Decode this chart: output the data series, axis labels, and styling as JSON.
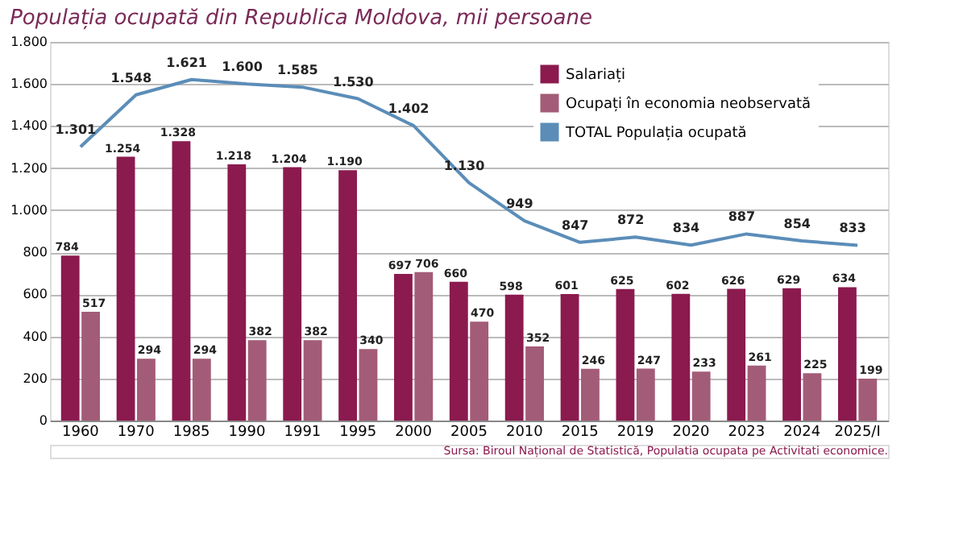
{
  "chart_data": {
    "type": "bar",
    "title": "Populația ocupată din Republica Moldova, mii persoane",
    "categories": [
      "1960",
      "1970",
      "1985",
      "1990",
      "1991",
      "1995",
      "2000",
      "2005",
      "2010",
      "2015",
      "2019",
      "2020",
      "2023",
      "2024",
      "2025/I"
    ],
    "series": [
      {
        "name": "Salariați",
        "color": "#8b1a4f",
        "values": [
          784,
          1254,
          1328,
          1218,
          1204,
          1190,
          697,
          660,
          598,
          601,
          625,
          602,
          626,
          629,
          634
        ],
        "value_labels": [
          "784",
          "1.254",
          "1.328",
          "1.218",
          "1.204",
          "1.190",
          "697",
          "660",
          "598",
          "601",
          "625",
          "602",
          "626",
          "629",
          "634"
        ]
      },
      {
        "name": "Ocupați în economia neobservată",
        "color": "#a35c77",
        "values": [
          517,
          294,
          294,
          382,
          382,
          340,
          706,
          470,
          352,
          246,
          247,
          233,
          261,
          225,
          199
        ],
        "value_labels": [
          "517",
          "294",
          "294",
          "382",
          "382",
          "340",
          "706",
          "470",
          "352",
          "246",
          "247",
          "233",
          "261",
          "225",
          "199"
        ]
      },
      {
        "name": "TOTAL Populația ocupată",
        "type": "line",
        "color": "#5b8db8",
        "values": [
          1301,
          1548,
          1621,
          1600,
          1585,
          1530,
          1402,
          1130,
          949,
          847,
          872,
          834,
          887,
          854,
          833
        ],
        "value_labels": [
          "1.301",
          "1.548",
          "1.621",
          "1.600",
          "1.585",
          "1.530",
          "1.402",
          "1.130",
          "949",
          "847",
          "872",
          "834",
          "887",
          "854",
          "833"
        ]
      }
    ],
    "ylim": [
      0,
      1800
    ],
    "yticks": [
      0,
      200,
      400,
      600,
      800,
      {
        "value": 1000,
        "label": "1.000"
      },
      {
        "value": 1200,
        "label": "1.200"
      },
      {
        "value": 1400,
        "label": "1.400"
      },
      {
        "value": 1600,
        "label": "1.600"
      },
      {
        "value": 1800,
        "label": "1.800"
      }
    ],
    "grid": "y",
    "legend": "top right",
    "marker": "none",
    "line_style": "solid",
    "annotations": [
      "Sursa: Biroul Național de Statistică, Populatia ocupata pe Activitati economice."
    ]
  }
}
